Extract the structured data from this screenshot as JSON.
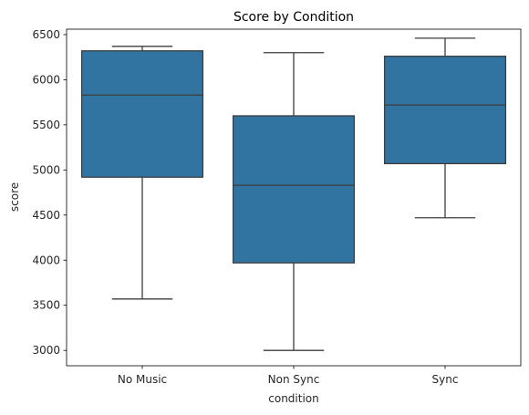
{
  "chart_data": {
    "type": "box",
    "title": "Score by Condition",
    "xlabel": "condition",
    "ylabel": "score",
    "categories": [
      "No Music",
      "Non Sync",
      "Sync"
    ],
    "boxes": [
      {
        "category": "No Music",
        "min": 3570,
        "q1": 4920,
        "median": 5830,
        "q3": 6320,
        "max": 6370
      },
      {
        "category": "Non Sync",
        "min": 3000,
        "q1": 3970,
        "median": 4830,
        "q3": 5600,
        "max": 6300
      },
      {
        "category": "Sync",
        "min": 4470,
        "q1": 5070,
        "median": 5720,
        "q3": 6260,
        "max": 6460
      }
    ],
    "ylim": [
      2830,
      6560
    ],
    "yticks": [
      3000,
      3500,
      4000,
      4500,
      5000,
      5500,
      6000,
      6500
    ],
    "grid": false,
    "colors": {
      "box_fill": "#3274a1",
      "line": "#3d3d3d",
      "axis": "#000000"
    }
  }
}
